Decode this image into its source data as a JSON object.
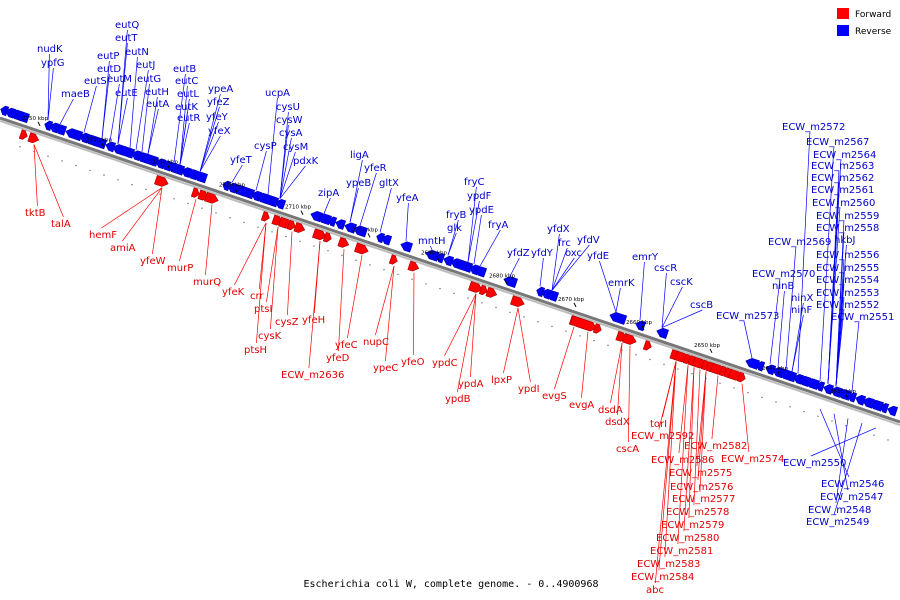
{
  "caption": "Escherichia coli W, complete genome. - 0..4900968",
  "legend": [
    {
      "label": "Forward",
      "color": "#ff0000"
    },
    {
      "label": "Reverse",
      "color": "#0000ff"
    }
  ],
  "colors": {
    "forward": "#ff0000",
    "reverse": "#0000ff",
    "forward_label": "#e00000",
    "reverse_label": "#0000cc",
    "backbone": "#777777"
  },
  "ticks": [
    "2750 kbp",
    "2740 kbp",
    "2730 kbp",
    "2720 kbp",
    "2710 kbp",
    "2700 kbp",
    "2690 kbp",
    "2680 kbp",
    "2670 kbp",
    "2660 kbp",
    "2650 kbp",
    "2640 kbp",
    "2630 kbp"
  ],
  "reverse_genes": [
    "nudK",
    "ypfG",
    "maeB",
    "eutS",
    "eutP",
    "eutQ",
    "eutT",
    "eutD",
    "eutN",
    "eutM",
    "eutE",
    "eutJ",
    "eutG",
    "eutH",
    "eutA",
    "eutB",
    "eutC",
    "eutL",
    "eutK",
    "eutR",
    "ypeA",
    "yfeZ",
    "yfeY",
    "yfeX",
    "yfeT",
    "ucpA",
    "cysU",
    "cysW",
    "cysA",
    "cysM",
    "cysP",
    "pdxK",
    "zipA",
    "ligA",
    "ypeB",
    "yfeR",
    "gltX",
    "yfeA",
    "mntH",
    "glk",
    "fryC",
    "ypdF",
    "fryB",
    "ypdE",
    "fryA",
    "yfdZ",
    "yfdY",
    "yfdX",
    "frc",
    "oxc",
    "yfdV",
    "yfdE",
    "emrK",
    "emrY",
    "cscR",
    "cscK",
    "cscB",
    "ECW_m2573",
    "ECW_m2572",
    "ECW_m2567",
    "ECW_m2564",
    "ECW_m2563",
    "ECW_m2562",
    "ECW_m2561",
    "ECW_m2560",
    "ECW_m2559",
    "ECW_m2558",
    "ECW_m2569",
    "hkbJ",
    "ECW_m2556",
    "ECW_m2570",
    "ECW_m2555",
    "ninB",
    "ECW_m2554",
    "ninX",
    "ECW_m2553",
    "ninF",
    "ECW_m2552",
    "ECW_m2551",
    "ECW_m2550",
    "ECW_m2546",
    "ECW_m2547",
    "ECW_m2548",
    "ECW_m2549"
  ],
  "forward_genes": [
    "tktB",
    "talA",
    "hemF",
    "amiA",
    "yfeW",
    "murP",
    "murQ",
    "yfeK",
    "crr",
    "ptsI",
    "cysZ",
    "cysK",
    "ptsH",
    "yfeH",
    "yfeC",
    "yfeD",
    "ECW_m2636",
    "nupC",
    "ypeC",
    "yfeO",
    "ypdC",
    "ypdA",
    "ypdB",
    "lpxP",
    "ypdI",
    "evgS",
    "evgA",
    "dsdA",
    "dsdX",
    "cscA",
    "torI",
    "ECW_m2592",
    "ECW_m2582",
    "ECW_m2586",
    "ECW_m2574",
    "ECW_m2575",
    "ECW_m2576",
    "ECW_m2577",
    "ECW_m2578",
    "ECW_m2579",
    "ECW_m2580",
    "ECW_m2581",
    "ECW_m2583",
    "ECW_m2584",
    "abc"
  ]
}
